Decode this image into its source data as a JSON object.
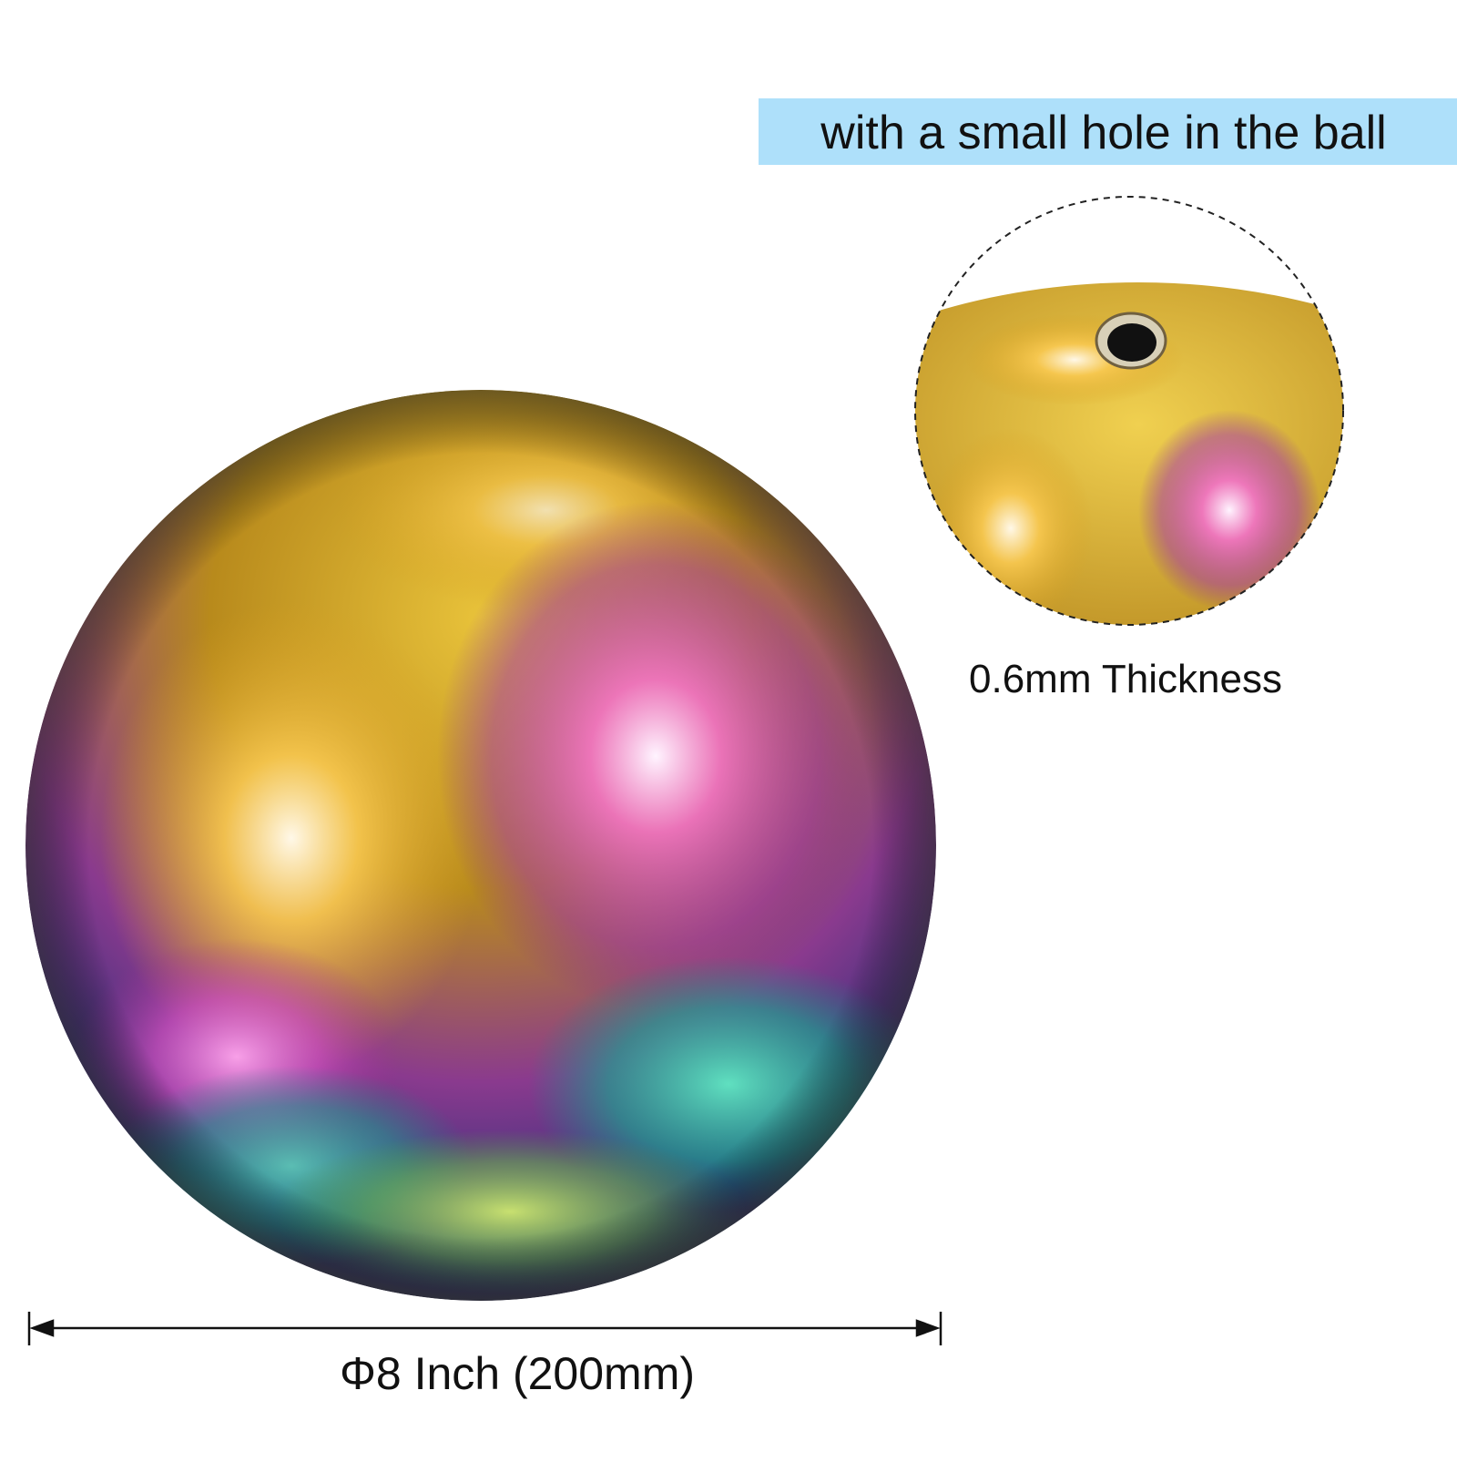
{
  "callout": {
    "text": "with a small hole in the ball"
  },
  "detail": {
    "caption": "0.6mm Thickness"
  },
  "dimension": {
    "label": "Φ8 Inch (200mm)"
  }
}
